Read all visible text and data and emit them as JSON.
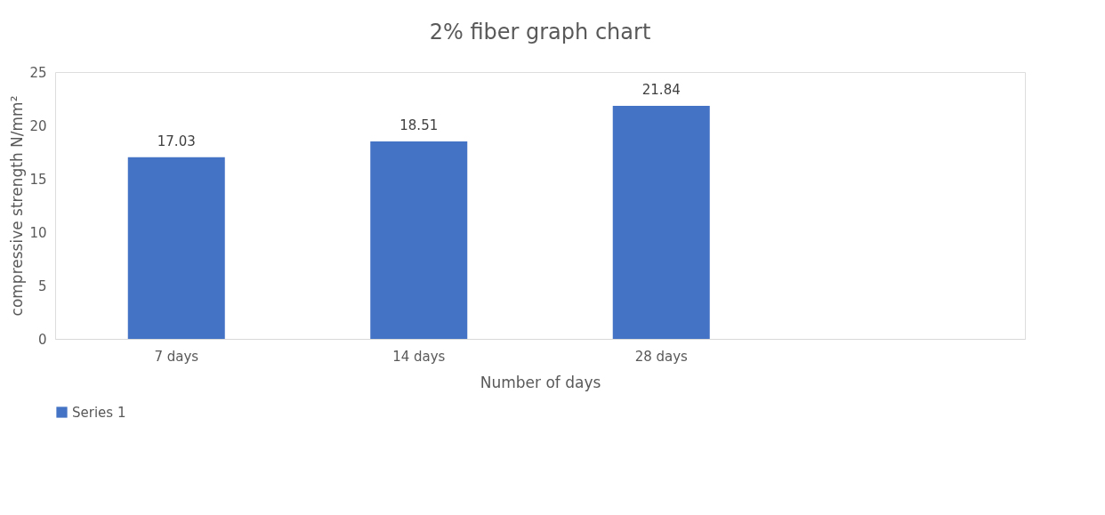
{
  "chart_data": {
    "type": "bar",
    "title": "2% fiber graph chart",
    "xlabel": "Number of days",
    "ylabel": "compressive strength N/mm²",
    "categories": [
      "7 days",
      "14 days",
      "28 days",
      null
    ],
    "series": [
      {
        "name": "Series 1",
        "color": "#4472c4",
        "values": [
          17.03,
          18.51,
          21.84,
          null
        ]
      }
    ],
    "ylim": [
      0,
      25
    ],
    "yticks": [
      0,
      5,
      10,
      15,
      20,
      25
    ],
    "grid": false,
    "legend": "bottom",
    "data_labels": true
  }
}
